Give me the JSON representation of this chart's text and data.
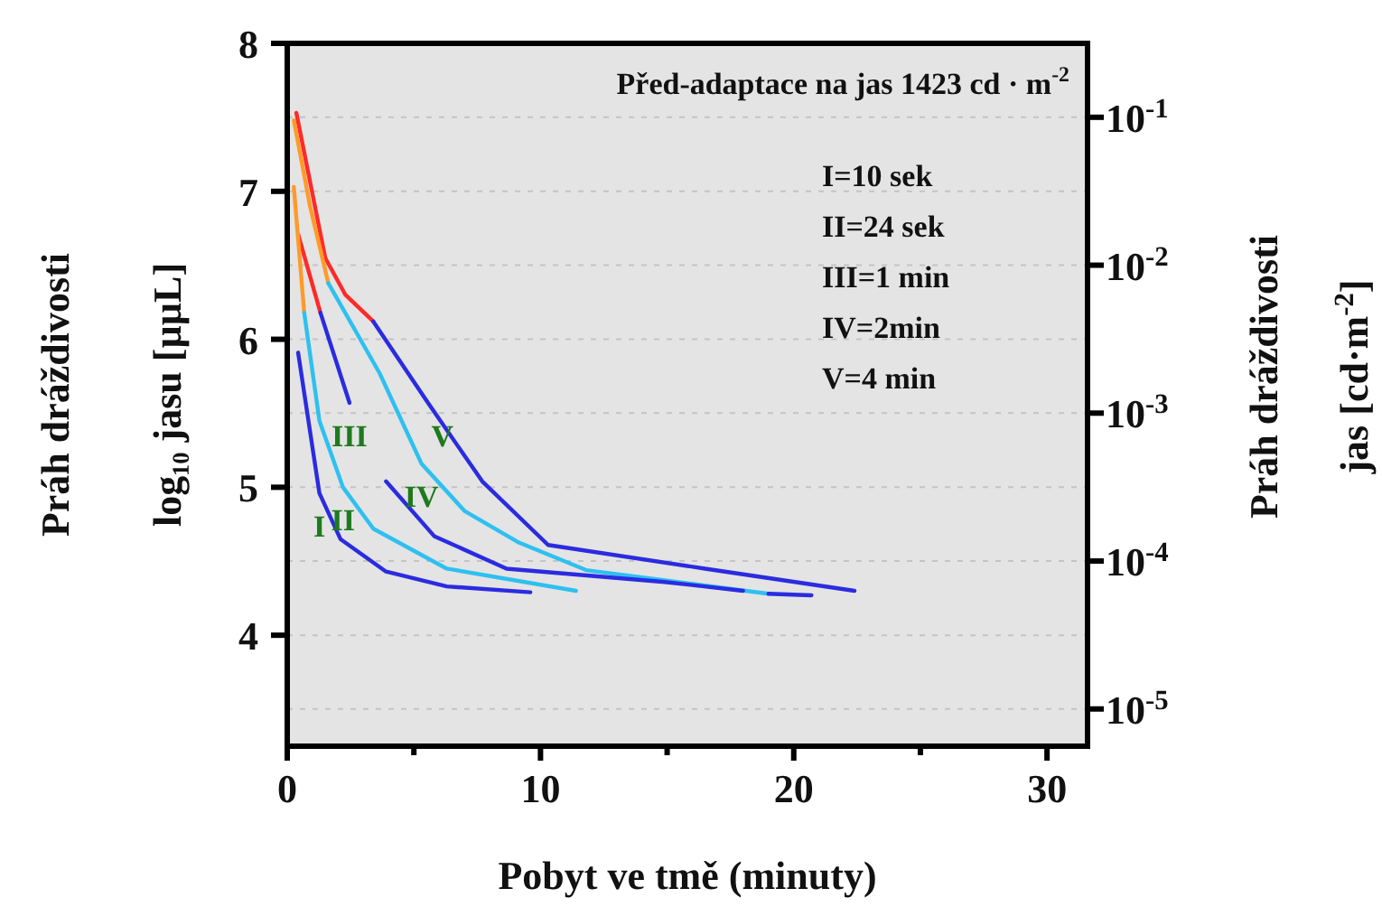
{
  "chart_data": {
    "type": "line",
    "xlabel": "Pobyt ve tmě (minuty)",
    "ylabel": "Práh dráždivosti\nlog₁₀ jasu [µµL]",
    "y2label": "Práh dráždivosti\njas [cd·m$^{-2}$]",
    "xlim": [
      0,
      31.6
    ],
    "xticks": [
      0,
      {
        "value": 5,
        "label": null
      },
      10,
      {
        "value": 15,
        "label": null
      },
      20,
      {
        "value": 25,
        "label": null
      },
      30
    ],
    "ylim": [
      3.25,
      8
    ],
    "yticks": [
      4,
      5,
      6,
      7,
      8
    ],
    "y2lim": [
      5.6e-06,
      0.316
    ],
    "y2ticks": [
      {
        "value": 0.1,
        "label": "10$^{-1}$"
      },
      {
        "value": 0.01,
        "label": "10$^{-2}$"
      },
      {
        "value": 0.001,
        "label": "10$^{-3}$"
      },
      {
        "value": 0.0001,
        "label": "10$^{-4}$"
      },
      {
        "value": 1e-05,
        "label": "10$^{-5}$"
      }
    ],
    "log": "y2",
    "grid": "y",
    "series": [
      {
        "color": "#ff2a2a",
        "x": [
          0.36,
          1.5,
          2.3,
          3.4
        ],
        "values": [
          7.53,
          6.55,
          6.3,
          6.12
        ]
      },
      {
        "color": "#2b2be0",
        "x": [
          3.4,
          5.56,
          7.7,
          10.3,
          16.5,
          22.4
        ],
        "values": [
          6.12,
          5.57,
          5.04,
          4.61,
          4.45,
          4.3
        ]
      },
      {
        "color": "#ff9a2a",
        "x": [
          0.26,
          0.9,
          1.62
        ],
        "values": [
          7.48,
          6.9,
          6.38
        ]
      },
      {
        "color": "#2ec0f0",
        "x": [
          1.62,
          3.65,
          5.3,
          7,
          9.1,
          11.8,
          19
        ],
        "values": [
          6.38,
          5.77,
          5.16,
          4.84,
          4.63,
          4.44,
          4.28
        ]
      },
      {
        "color": "#2b2be0",
        "x": [
          19,
          20.7
        ],
        "values": [
          4.28,
          4.27
        ]
      },
      {
        "color": "#ff2a2a",
        "x": [
          0.43,
          1.31
        ],
        "values": [
          6.71,
          6.18
        ]
      },
      {
        "color": "#2b2be0",
        "x": [
          1.31,
          2.46
        ],
        "values": [
          6.18,
          5.57
        ]
      },
      {
        "color": "#2b2be0",
        "x": [
          3.9,
          5.8,
          8.66,
          14.9,
          18
        ],
        "values": [
          5.04,
          4.67,
          4.45,
          4.36,
          4.3
        ]
      },
      {
        "color": "#ff9a2a",
        "x": [
          0.26,
          0.67
        ],
        "values": [
          7.03,
          6.18
        ]
      },
      {
        "color": "#2ec0f0",
        "x": [
          0.67,
          1.27,
          2.2,
          3.4,
          6.3,
          11.4
        ],
        "values": [
          6.18,
          5.45,
          5.0,
          4.72,
          4.45,
          4.3
        ]
      },
      {
        "color": "#2b2be0",
        "x": [
          0.43,
          1.27,
          2.1,
          3.9,
          6.3,
          9.6
        ],
        "values": [
          5.91,
          4.96,
          4.65,
          4.43,
          4.33,
          4.29
        ]
      }
    ],
    "annotations": [
      "Před-adaptace na jas 1423 cd · m$^{-2}$",
      "I=10 sek",
      "II=24 sek",
      "III=1 min",
      "IV=2min",
      "V=4 min",
      {
        "text": "I",
        "x": 1.27,
        "y": 4.96
      },
      {
        "text": "II",
        "x": 2.2,
        "y": 5.0
      },
      {
        "text": "III",
        "x": 2.46,
        "y": 5.57
      },
      {
        "text": "IV",
        "x": 5.3,
        "y": 5.16
      },
      {
        "text": "V",
        "x": 5.56,
        "y": 5.57
      }
    ]
  }
}
